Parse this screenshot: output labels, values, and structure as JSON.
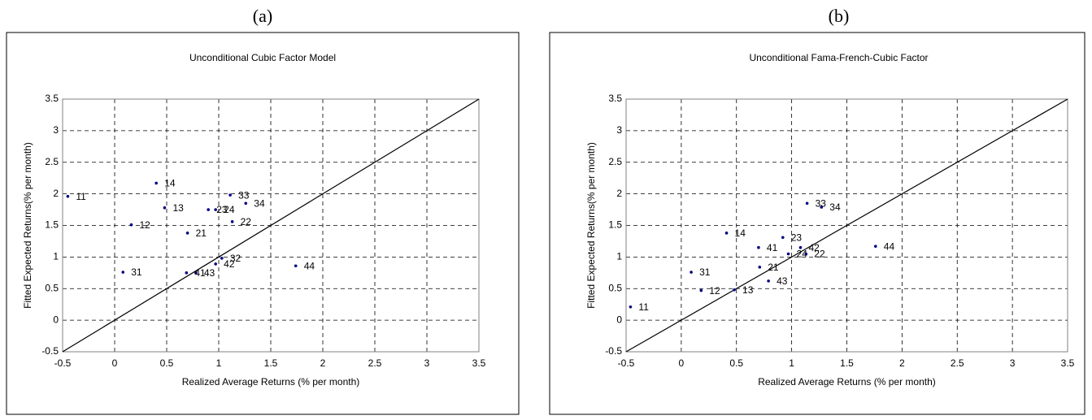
{
  "chart_data": [
    {
      "type": "scatter",
      "panel": "(a)",
      "title": "Unconditional Cubic Factor Model",
      "x_label": "Realized Average Returns (% per month)",
      "y_label": "Fitted Expected Returns(% per month)",
      "color": "#000080",
      "grid": true,
      "xlim": [
        -0.5,
        3.5
      ],
      "ylim": [
        -0.5,
        3.5
      ],
      "xticks": [
        -0.5,
        0,
        0.5,
        1,
        1.5,
        2,
        2.5,
        3,
        3.5
      ],
      "yticks": [
        -0.5,
        0,
        0.5,
        1,
        1.5,
        2,
        2.5,
        3,
        3.5
      ],
      "labels": [
        "11",
        "14",
        "13",
        "12",
        "21",
        "23",
        "24",
        "33",
        "34",
        "22",
        "32",
        "42",
        "43",
        "41",
        "31",
        "44"
      ],
      "x": [
        -0.45,
        0.4,
        0.48,
        0.16,
        0.7,
        0.9,
        0.97,
        1.11,
        1.26,
        1.13,
        1.03,
        0.97,
        0.78,
        0.69,
        0.08,
        1.74
      ],
      "y": [
        1.96,
        2.17,
        1.78,
        1.51,
        1.38,
        1.75,
        1.75,
        1.98,
        1.85,
        1.56,
        0.98,
        0.89,
        0.75,
        0.75,
        0.76,
        0.86
      ]
    },
    {
      "type": "scatter",
      "panel": "(b)",
      "title": "Unconditional Fama-French-Cubic Factor",
      "x_label": "Realized Average Returns (% per month)",
      "y_label": "Fitted Expected Returns(% per month)",
      "color": "#000080",
      "grid": true,
      "xlim": [
        -0.5,
        3.5
      ],
      "ylim": [
        -0.5,
        3.5
      ],
      "xticks": [
        -0.5,
        0,
        0.5,
        1,
        1.5,
        2,
        2.5,
        3,
        3.5
      ],
      "yticks": [
        -0.5,
        0,
        0.5,
        1,
        1.5,
        2,
        2.5,
        3,
        3.5
      ],
      "labels": [
        "11",
        "12",
        "13",
        "31",
        "14",
        "41",
        "23",
        "21",
        "43",
        "42",
        "24",
        "22",
        "33",
        "34",
        "44"
      ],
      "x": [
        -0.46,
        0.18,
        0.48,
        0.09,
        0.41,
        0.7,
        0.92,
        0.71,
        0.79,
        1.08,
        0.97,
        1.13,
        1.14,
        1.27,
        1.76
      ],
      "y": [
        0.21,
        0.47,
        0.48,
        0.76,
        1.38,
        1.15,
        1.31,
        0.84,
        0.62,
        1.15,
        1.05,
        1.05,
        1.85,
        1.79,
        1.17
      ]
    }
  ]
}
